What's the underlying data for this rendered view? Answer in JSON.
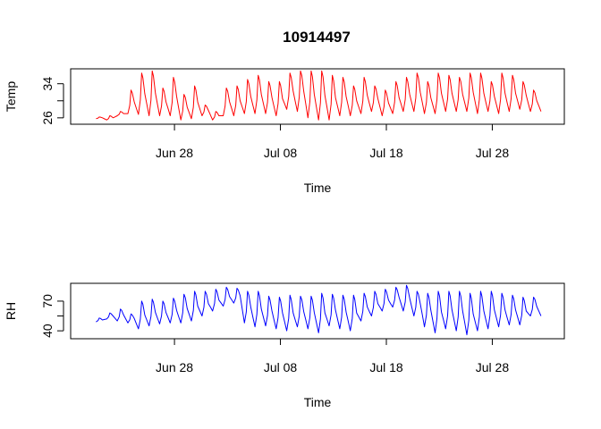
{
  "figure": {
    "title": "10914497"
  },
  "chart_data": [
    {
      "type": "line",
      "xlabel": "Time",
      "ylabel": "Temp",
      "x_start": "Jun 20",
      "x_end": "Aug 1",
      "xlim_days_from_jun28": [
        -9.8,
        36.8
      ],
      "xticks": [
        {
          "label": "Jun 28",
          "day": 0
        },
        {
          "label": "Jul 08",
          "day": 10
        },
        {
          "label": "Jul 18",
          "day": 20
        },
        {
          "label": "Jul 28",
          "day": 30
        }
      ],
      "ylim": [
        24.5,
        37.5
      ],
      "yticks": [
        26,
        30,
        34
      ],
      "yticklabels": [
        "26",
        "",
        "34"
      ],
      "grid": false,
      "series": [
        {
          "color": "#ff0000",
          "daily_min": [
            25.8,
            25.5,
            26.5,
            27,
            26.8,
            26.5,
            26.5,
            26.5,
            25.5,
            25.8,
            26.5,
            25.5,
            26.5,
            26.5,
            27,
            27,
            27,
            26.5,
            28,
            27.5,
            26,
            25.5,
            25.5,
            26.5,
            26.5,
            27,
            27.5,
            26.5,
            27,
            27.5,
            27.5,
            27,
            27,
            27.5,
            27.5,
            27.5,
            27,
            27.5,
            27,
            27.5,
            28,
            27.5
          ],
          "daily_max": [
            26.2,
            26.5,
            27.5,
            32.5,
            36.5,
            37,
            33,
            35.5,
            31.5,
            33.5,
            29,
            27.5,
            33,
            33.5,
            35,
            36,
            34.5,
            34.5,
            36.5,
            37,
            37,
            37,
            36,
            35.5,
            33.5,
            35.5,
            33.5,
            32.5,
            34.5,
            35.5,
            36.5,
            34.5,
            36.5,
            36,
            35.5,
            36.5,
            36.5,
            34.5,
            36.5,
            36,
            34.5,
            32.5
          ]
        }
      ]
    },
    {
      "type": "line",
      "xlabel": "Time",
      "ylabel": "RH",
      "x_start": "Jun 20",
      "x_end": "Aug 1",
      "xlim_days_from_jun28": [
        -9.8,
        36.8
      ],
      "xticks": [
        {
          "label": "Jun 28",
          "day": 0
        },
        {
          "label": "Jul 08",
          "day": 10
        },
        {
          "label": "Jul 18",
          "day": 20
        },
        {
          "label": "Jul 28",
          "day": 30
        }
      ],
      "ylim": [
        32,
        88
      ],
      "yticks": [
        40,
        55,
        70
      ],
      "yticklabels": [
        "40",
        "",
        "70"
      ],
      "grid": false,
      "series": [
        {
          "color": "#0000ff",
          "daily_min": [
            49,
            52,
            50,
            48,
            42,
            45,
            47,
            48,
            48,
            50,
            55,
            60,
            65,
            68,
            48,
            44,
            45,
            42,
            40,
            44,
            42,
            38,
            45,
            42,
            40,
            50,
            55,
            60,
            64,
            60,
            55,
            44,
            38,
            42,
            40,
            36,
            40,
            42,
            44,
            46,
            46,
            55
          ],
          "daily_max": [
            53,
            58,
            62,
            57,
            70,
            72,
            70,
            73,
            77,
            80,
            80,
            82,
            84,
            83,
            80,
            80,
            75,
            74,
            76,
            75,
            75,
            78,
            77,
            76,
            76,
            78,
            80,
            82,
            84,
            86,
            80,
            78,
            80,
            80,
            80,
            78,
            80,
            80,
            78,
            76,
            74,
            74
          ]
        }
      ]
    }
  ]
}
